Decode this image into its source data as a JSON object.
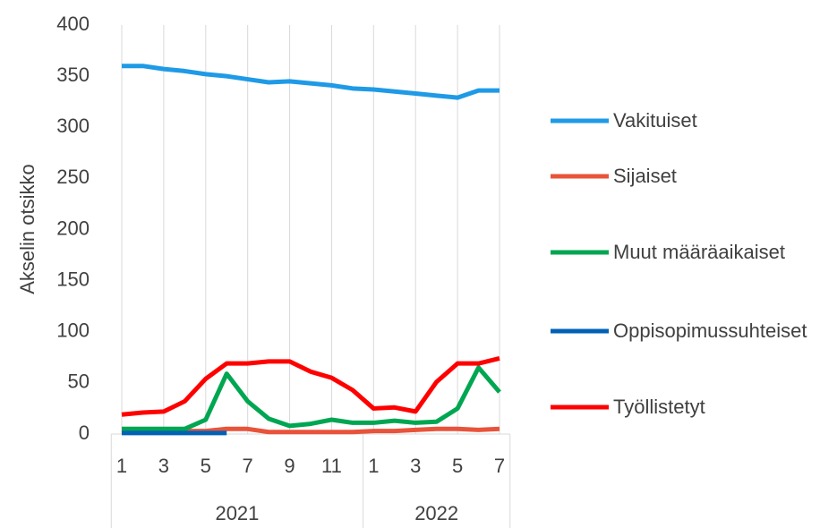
{
  "chart_data": {
    "type": "line",
    "y_label": "Akselin otsikko",
    "categories": [
      "1",
      null,
      "3",
      null,
      "5",
      null,
      "7",
      null,
      "9",
      null,
      "11",
      null,
      "1",
      null,
      "3",
      null,
      "5",
      null,
      "7"
    ],
    "groups": [
      {
        "name": "2021",
        "count": 12
      },
      {
        "name": "2022",
        "count": 7
      }
    ],
    "ylim": [
      0,
      400
    ],
    "yticks": [
      0,
      50,
      100,
      150,
      200,
      250,
      300,
      350,
      400
    ],
    "series": [
      {
        "name": "Vakituiset",
        "color": "#1f9ae6",
        "values": [
          360,
          360,
          357,
          355,
          352,
          350,
          347,
          344,
          345,
          343,
          341,
          338,
          337,
          335,
          333,
          331,
          329,
          336,
          336
        ]
      },
      {
        "name": "Sijaiset",
        "color": "#e8533a",
        "values": [
          3,
          3,
          3,
          3,
          3,
          5,
          5,
          2,
          2,
          2,
          2,
          2,
          3,
          3,
          4,
          5,
          5,
          4,
          5
        ]
      },
      {
        "name": "Muut määräaikaiset",
        "color": "#00a651",
        "values": [
          5,
          5,
          5,
          5,
          14,
          59,
          32,
          15,
          8,
          10,
          14,
          11,
          11,
          13,
          11,
          12,
          25,
          65,
          41
        ]
      },
      {
        "name": "Oppisopimussuhteiset",
        "color": "#0061b5",
        "values": [
          1,
          1,
          1,
          1,
          1,
          1,
          null,
          null,
          null,
          null,
          null,
          null,
          null,
          null,
          null,
          null,
          null,
          null,
          null
        ]
      },
      {
        "name": "Työllistetyt",
        "color": "#ff0000",
        "values": [
          19,
          21,
          22,
          32,
          54,
          69,
          69,
          71,
          71,
          61,
          55,
          43,
          25,
          26,
          22,
          51,
          69,
          69,
          74
        ]
      }
    ],
    "legend": "right"
  }
}
